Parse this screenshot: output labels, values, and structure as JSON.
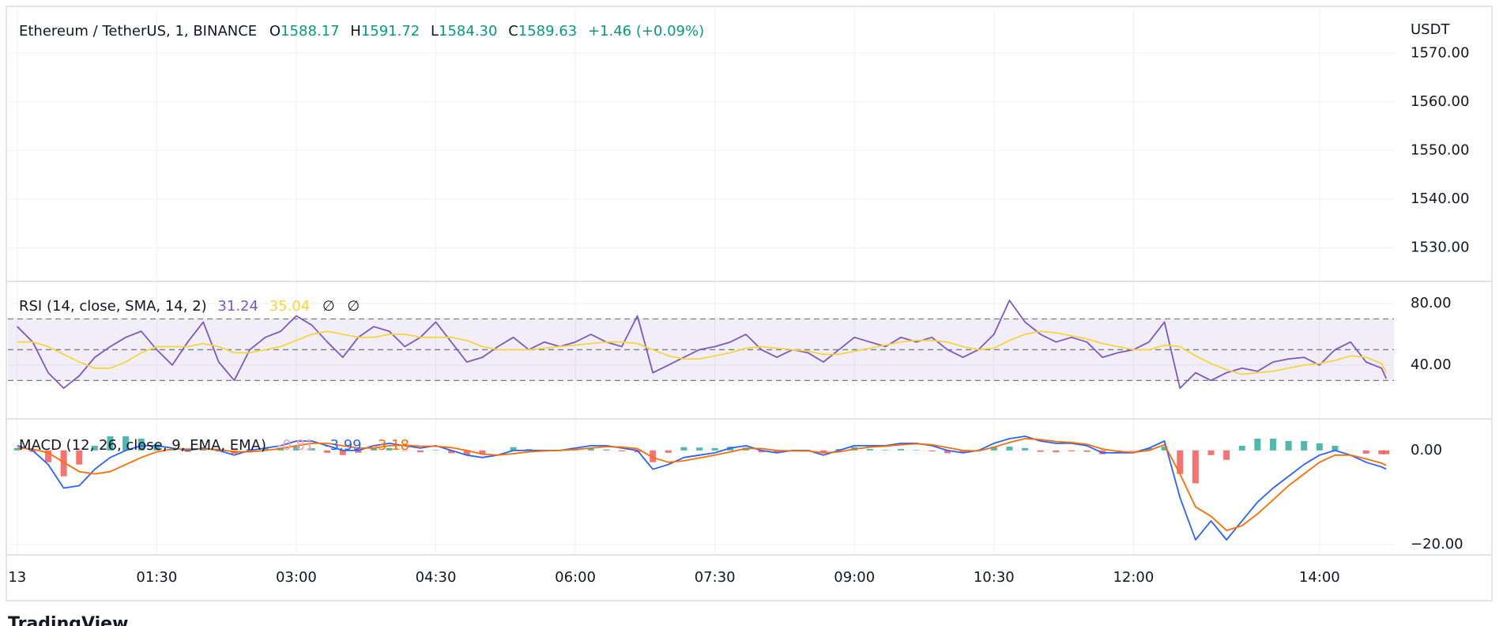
{
  "header": {
    "symbol": "Ethereum / TetherUS, 1, BINANCE",
    "ohlc_letters": [
      "O",
      "H",
      "L",
      "C"
    ],
    "ohlc": [
      1588.17,
      1591.72,
      1584.3,
      1589.63
    ],
    "ohlc_labels": [
      "1588.17",
      "1591.72",
      "1584.30",
      "1589.63"
    ],
    "change": "+1.46 (+0.09%)"
  },
  "footer": {
    "logo": "TradingView"
  },
  "chart_data": [
    {
      "type": "line",
      "unit": "USDT",
      "ylim": [
        1523.1,
        1579.3
      ],
      "yticks": [
        {
          "value": 1530,
          "label": "1530.00"
        },
        {
          "value": 1540,
          "label": "1540.00"
        },
        {
          "value": 1550,
          "label": "1550.00"
        },
        {
          "value": 1560,
          "label": "1560.00"
        },
        {
          "value": 1570,
          "label": "1570.00"
        }
      ],
      "grid": true
    },
    {
      "type": "line",
      "title": "RSI (14, close, SMA, 14, 2)",
      "legend_extra": [
        "∅",
        "∅"
      ],
      "x": [
        0,
        10,
        20,
        30,
        40,
        50,
        60,
        70,
        80,
        90,
        100,
        110,
        120,
        130,
        140,
        150,
        160,
        170,
        180,
        190,
        200,
        210,
        220,
        230,
        240,
        250,
        260,
        270,
        280,
        290,
        300,
        310,
        320,
        330,
        340,
        350,
        360,
        370,
        380,
        390,
        400,
        410,
        420,
        430,
        440,
        450,
        460,
        470,
        480,
        490,
        500,
        510,
        520,
        530,
        540,
        550,
        560,
        570,
        580,
        590,
        600,
        610,
        620,
        630,
        640,
        650,
        660,
        670,
        680,
        690,
        700,
        710,
        720,
        730,
        740,
        750,
        760,
        770,
        780,
        790,
        800,
        810,
        820,
        830,
        840,
        850,
        860,
        870,
        880,
        883
      ],
      "series": [
        {
          "color": "#7e57c2",
          "values": [
            65,
            55,
            35,
            25,
            33,
            45,
            52,
            58,
            62,
            50,
            40,
            55,
            68,
            42,
            30,
            50,
            58,
            62,
            72,
            66,
            55,
            45,
            58,
            65,
            62,
            52,
            58,
            68,
            55,
            42,
            45,
            52,
            58,
            50,
            55,
            52,
            55,
            60,
            55,
            52,
            72,
            35,
            40,
            45,
            50,
            52,
            55,
            60,
            50,
            45,
            50,
            48,
            42,
            50,
            58,
            55,
            52,
            58,
            55,
            58,
            50,
            45,
            50,
            60,
            82,
            68,
            60,
            55,
            58,
            55,
            45,
            48,
            50,
            55,
            68,
            25,
            35,
            30,
            35,
            38,
            36,
            42,
            44,
            45,
            40,
            50,
            55,
            42,
            38,
            31.24
          ]
        },
        {
          "color": "#f5d53b",
          "values": [
            55,
            55,
            52,
            47,
            42,
            38,
            38,
            42,
            48,
            52,
            52,
            52,
            54,
            52,
            48,
            48,
            50,
            52,
            56,
            60,
            62,
            60,
            58,
            58,
            60,
            60,
            58,
            58,
            58,
            56,
            52,
            50,
            50,
            50,
            51,
            52,
            53,
            54,
            55,
            55,
            54,
            50,
            46,
            44,
            44,
            46,
            48,
            51,
            52,
            51,
            50,
            49,
            47,
            47,
            49,
            51,
            53,
            55,
            56,
            56,
            55,
            52,
            50,
            51,
            56,
            60,
            62,
            61,
            59,
            57,
            54,
            52,
            50,
            50,
            53,
            52,
            46,
            41,
            37,
            34,
            35,
            36,
            38,
            40,
            41,
            43,
            46,
            45,
            41,
            35.04
          ]
        }
      ],
      "bands": [
        70,
        50,
        30
      ],
      "band_color": "#7e57c2",
      "ylim": [
        5,
        94.4
      ],
      "yticks": [
        {
          "value": 40,
          "label": "40.00"
        },
        {
          "value": 80,
          "label": "80.00"
        }
      ],
      "grid": true
    },
    {
      "type": "line",
      "title": "MACD (12, 26, close, 9, EMA, EMA)",
      "x": [
        0,
        10,
        20,
        30,
        40,
        50,
        60,
        70,
        80,
        90,
        100,
        110,
        120,
        130,
        140,
        150,
        160,
        170,
        180,
        190,
        200,
        210,
        220,
        230,
        240,
        250,
        260,
        270,
        280,
        290,
        300,
        310,
        320,
        330,
        340,
        350,
        360,
        370,
        380,
        390,
        400,
        410,
        420,
        430,
        440,
        450,
        460,
        470,
        480,
        490,
        500,
        510,
        520,
        530,
        540,
        550,
        560,
        570,
        580,
        590,
        600,
        610,
        620,
        630,
        640,
        650,
        660,
        670,
        680,
        690,
        700,
        710,
        720,
        730,
        740,
        750,
        760,
        770,
        780,
        790,
        800,
        810,
        820,
        830,
        840,
        850,
        860,
        870,
        880,
        883
      ],
      "series": [
        {
          "type": "histogram",
          "color": "#26a69a",
          "negative_color": "#ef5350",
          "values": [
            0.5,
            -0.3,
            -2.5,
            -5.5,
            -3,
            1,
            3,
            3,
            2.5,
            1.3,
            0.2,
            -0.3,
            0.2,
            -0.2,
            -0.7,
            0.3,
            0.5,
            0.6,
            1,
            0.5,
            -0.5,
            -1,
            -0.5,
            0.5,
            0.5,
            -0.1,
            -0.4,
            0.1,
            -0.6,
            -1,
            -0.7,
            0,
            0.7,
            0.3,
            0.1,
            0,
            0.3,
            0.5,
            0.2,
            -0.2,
            -0.4,
            -2.5,
            -0.5,
            0.7,
            0.6,
            0.5,
            0.8,
            0.6,
            -0.4,
            -0.5,
            0.1,
            0.1,
            -0.5,
            0.3,
            0.7,
            0.3,
            0.1,
            0.3,
            0.1,
            -0.2,
            -0.6,
            -0.5,
            0.1,
            0.8,
            0.8,
            0.5,
            -0.3,
            -0.4,
            -0.2,
            -0.3,
            -0.8,
            -0.3,
            -0.1,
            0.5,
            0.8,
            -5,
            -7,
            -1,
            -2,
            1,
            2.5,
            2.5,
            2,
            2,
            1.5,
            1,
            0,
            -0.7,
            -0.8,
            -0.81
          ]
        },
        {
          "type": "line",
          "color": "#2962ff",
          "values": [
            1,
            0,
            -3,
            -8,
            -7.5,
            -4,
            -1.5,
            0,
            1,
            1,
            0.5,
            0,
            0.5,
            0,
            -1,
            0,
            0.5,
            1,
            2,
            2,
            1,
            0,
            0,
            1,
            1.5,
            1,
            0.5,
            1,
            0,
            -1,
            -1.5,
            -1,
            0,
            0,
            0,
            0,
            0.5,
            1,
            1,
            0.5,
            0,
            -4,
            -3,
            -1.5,
            -1,
            -0.5,
            0.5,
            1,
            0,
            -0.5,
            0,
            0,
            -1,
            0,
            1,
            1,
            1,
            1.5,
            1.5,
            1,
            0,
            -0.5,
            0,
            1.5,
            2.5,
            3,
            2,
            1.5,
            1.5,
            1,
            -0.5,
            -0.5,
            -0.5,
            0.5,
            2,
            -10,
            -19,
            -15,
            -19,
            -15,
            -11,
            -8,
            -5.5,
            -3,
            -1,
            0,
            -1,
            -2.5,
            -3.5,
            -3.99
          ]
        },
        {
          "type": "line",
          "color": "#ff6d00",
          "values": [
            0.5,
            0.3,
            -0.5,
            -2.5,
            -4.5,
            -5,
            -4.5,
            -3,
            -1.5,
            -0.3,
            0.3,
            0.3,
            0.3,
            0.2,
            -0.3,
            -0.3,
            0,
            0.4,
            1,
            1.5,
            1.5,
            1,
            0.5,
            0.5,
            1,
            1.1,
            0.9,
            0.9,
            0.6,
            0,
            -0.8,
            -1,
            -0.7,
            -0.3,
            -0.1,
            0,
            0.2,
            0.5,
            0.8,
            0.7,
            0.4,
            -1.5,
            -2.5,
            -2.2,
            -1.6,
            -1,
            -0.3,
            0.4,
            0.4,
            0,
            -0.1,
            -0.1,
            -0.5,
            -0.3,
            0.3,
            0.7,
            0.9,
            1.2,
            1.4,
            1.2,
            0.6,
            0,
            -0.1,
            0.7,
            1.7,
            2.5,
            2.3,
            1.9,
            1.7,
            1.3,
            0.3,
            -0.2,
            -0.4,
            0,
            1.2,
            -5,
            -12,
            -14,
            -17,
            -16,
            -13.5,
            -10.5,
            -7.5,
            -5,
            -2.5,
            -1,
            -1,
            -1.8,
            -2.7,
            -3.18
          ]
        }
      ],
      "ylim": [
        -22.2,
        6.7
      ],
      "yticks": [
        {
          "value": -20,
          "label": "−20.00"
        },
        {
          "value": 0,
          "label": "0.00"
        }
      ],
      "grid": true,
      "xlim": [
        -6,
        888
      ],
      "xticks": [
        {
          "value": 0,
          "label": "13"
        },
        {
          "value": 90,
          "label": "01:30"
        },
        {
          "value": 180,
          "label": "03:00"
        },
        {
          "value": 270,
          "label": "04:30"
        },
        {
          "value": 360,
          "label": "06:00"
        },
        {
          "value": 450,
          "label": "07:30"
        },
        {
          "value": 540,
          "label": "09:00"
        },
        {
          "value": 630,
          "label": "10:30"
        },
        {
          "value": 720,
          "label": "12:00"
        },
        {
          "value": 840,
          "label": "14:00"
        }
      ]
    }
  ]
}
